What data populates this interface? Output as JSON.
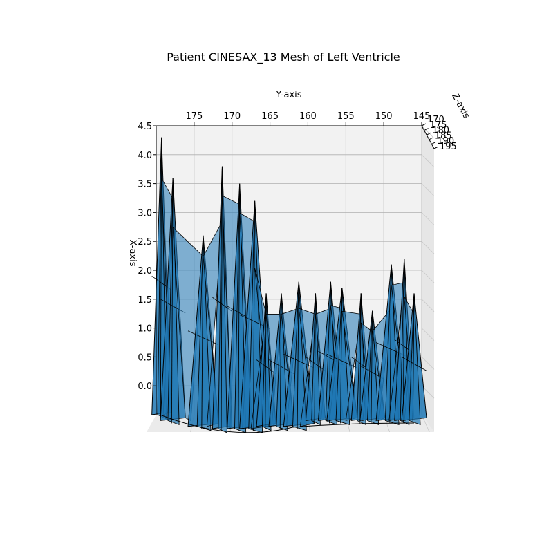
{
  "chart_data": {
    "type": "mesh3d",
    "title": "Patient CINESAX_13 Mesh of Left Ventricle",
    "xlabel": "X-axis",
    "ylabel": "Y-axis",
    "zlabel": "Z-axis",
    "y_ticks": [
      "175",
      "170",
      "165",
      "160",
      "155",
      "150",
      "145"
    ],
    "x_ticks": [
      "0.0",
      "0.5",
      "1.0",
      "1.5",
      "2.0",
      "2.5",
      "3.0",
      "3.5",
      "4.0",
      "4.5"
    ],
    "z_ticks": [
      "170",
      "175",
      "180",
      "185",
      "190",
      "195"
    ],
    "ylim": [
      145,
      180
    ],
    "xlim": [
      -0.5,
      4.5
    ],
    "zlim": [
      170,
      195
    ],
    "grid": true,
    "face_color": "#1f77b4",
    "edge_color": "#000000",
    "spikes": [
      {
        "y": 179.3,
        "x_base": -0.5,
        "x_top": 4.3
      },
      {
        "y": 177.8,
        "x_base": -0.6,
        "x_top": 3.6
      },
      {
        "y": 173.8,
        "x_base": -0.7,
        "x_top": 2.6
      },
      {
        "y": 171.3,
        "x_base": -0.8,
        "x_top": 3.8
      },
      {
        "y": 169.0,
        "x_base": -0.8,
        "x_top": 3.5
      },
      {
        "y": 167.0,
        "x_base": -0.8,
        "x_top": 3.2
      },
      {
        "y": 165.5,
        "x_base": -0.7,
        "x_top": 1.6
      },
      {
        "y": 163.5,
        "x_base": -0.7,
        "x_top": 1.6
      },
      {
        "y": 161.2,
        "x_base": -0.7,
        "x_top": 1.8
      },
      {
        "y": 159.0,
        "x_base": -0.6,
        "x_top": 1.6
      },
      {
        "y": 157.0,
        "x_base": -0.6,
        "x_top": 1.8
      },
      {
        "y": 155.5,
        "x_base": -0.6,
        "x_top": 1.7
      },
      {
        "y": 153.0,
        "x_base": -0.6,
        "x_top": 1.6
      },
      {
        "y": 151.5,
        "x_base": -0.6,
        "x_top": 1.3
      },
      {
        "y": 149.0,
        "x_base": -0.6,
        "x_top": 2.1
      },
      {
        "y": 147.3,
        "x_base": -0.6,
        "x_top": 2.2
      },
      {
        "y": 146.0,
        "x_base": -0.6,
        "x_top": 1.6
      }
    ]
  }
}
